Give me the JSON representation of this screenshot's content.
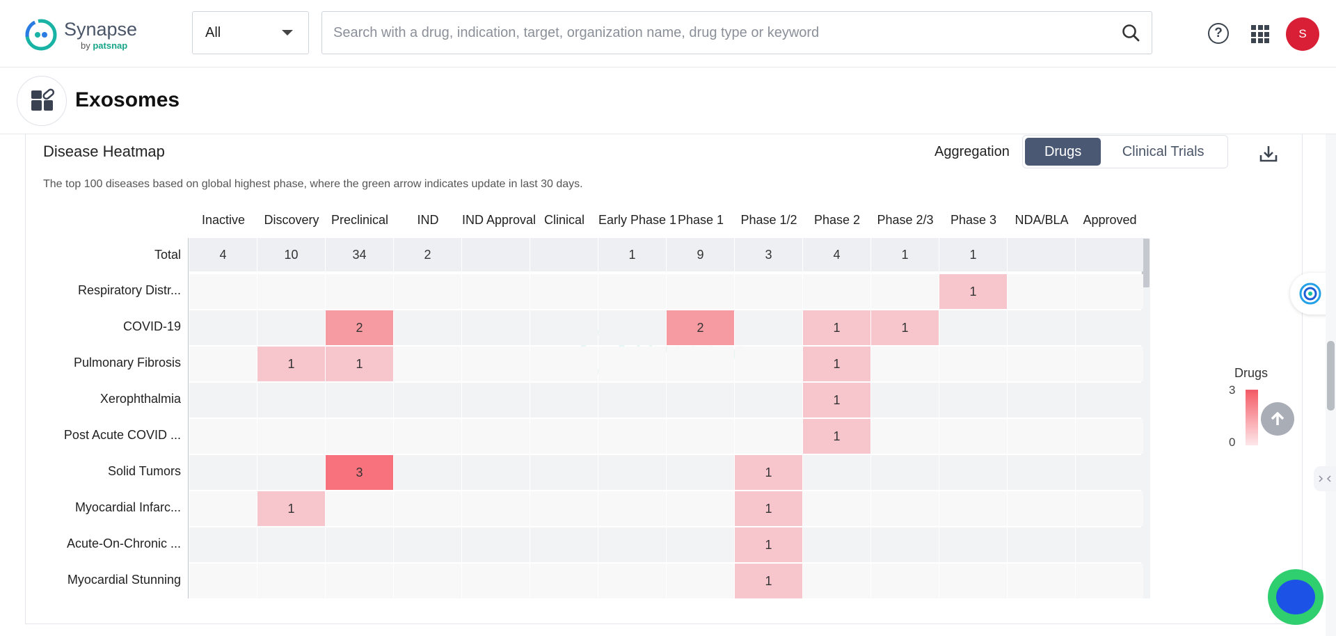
{
  "brand": {
    "name": "Synapse",
    "by": "by ",
    "by_brand": "patsnap"
  },
  "search": {
    "scope": "All",
    "placeholder": "Search with a drug, indication, target, organization name, drug type or keyword"
  },
  "header": {
    "help": "?",
    "avatar_initial": "S"
  },
  "entity": {
    "title": "Exosomes"
  },
  "card": {
    "title": "Disease Heatmap",
    "description": "The top 100 diseases based on global highest phase, where the green arrow indicates update in last 30 days.",
    "aggregation_label": "Aggregation",
    "aggregation_options": [
      "Drugs",
      "Clinical Trials"
    ],
    "aggregation_selected": "Drugs"
  },
  "legend": {
    "title": "Drugs",
    "max": "3",
    "min": "0",
    "color_high": "#f5616b",
    "color_low": "#fde7ea"
  },
  "chart_data": {
    "type": "heatmap",
    "columns": [
      "Inactive",
      "Discovery",
      "Preclinical",
      "IND",
      "IND Approval",
      "Clinical",
      "Early Phase 1",
      "Phase 1",
      "Phase 1/2",
      "Phase 2",
      "Phase 2/3",
      "Phase 3",
      "NDA/BLA",
      "Approved"
    ],
    "total_label": "Total",
    "totals": [
      4,
      10,
      34,
      2,
      null,
      null,
      1,
      9,
      3,
      4,
      1,
      1,
      null,
      null
    ],
    "rows": [
      {
        "label": "Respiratory Distr...",
        "values": [
          null,
          null,
          null,
          null,
          null,
          null,
          null,
          null,
          null,
          null,
          null,
          1,
          null,
          null
        ]
      },
      {
        "label": "COVID-19",
        "values": [
          null,
          null,
          2,
          null,
          null,
          null,
          null,
          2,
          null,
          1,
          1,
          null,
          null,
          null
        ]
      },
      {
        "label": "Pulmonary Fibrosis",
        "values": [
          null,
          1,
          1,
          null,
          null,
          null,
          null,
          null,
          null,
          1,
          null,
          null,
          null,
          null
        ]
      },
      {
        "label": "Xerophthalmia",
        "values": [
          null,
          null,
          null,
          null,
          null,
          null,
          null,
          null,
          null,
          1,
          null,
          null,
          null,
          null
        ]
      },
      {
        "label": "Post Acute COVID ...",
        "values": [
          null,
          null,
          null,
          null,
          null,
          null,
          null,
          null,
          null,
          1,
          null,
          null,
          null,
          null
        ]
      },
      {
        "label": "Solid Tumors",
        "values": [
          null,
          null,
          3,
          null,
          null,
          null,
          null,
          null,
          1,
          null,
          null,
          null,
          null,
          null
        ]
      },
      {
        "label": "Myocardial Infarc...",
        "values": [
          null,
          1,
          null,
          null,
          null,
          null,
          null,
          null,
          1,
          null,
          null,
          null,
          null,
          null
        ]
      },
      {
        "label": "Acute-On-Chronic ...",
        "values": [
          null,
          null,
          null,
          null,
          null,
          null,
          null,
          null,
          1,
          null,
          null,
          null,
          null,
          null
        ]
      },
      {
        "label": "Myocardial Stunning",
        "values": [
          null,
          null,
          null,
          null,
          null,
          null,
          null,
          null,
          1,
          null,
          null,
          null,
          null,
          null
        ]
      }
    ],
    "scale": [
      0,
      3
    ],
    "colors": {
      "1": "#f7c6cc",
      "2": "#f79ba3",
      "3": "#f8727e"
    }
  }
}
